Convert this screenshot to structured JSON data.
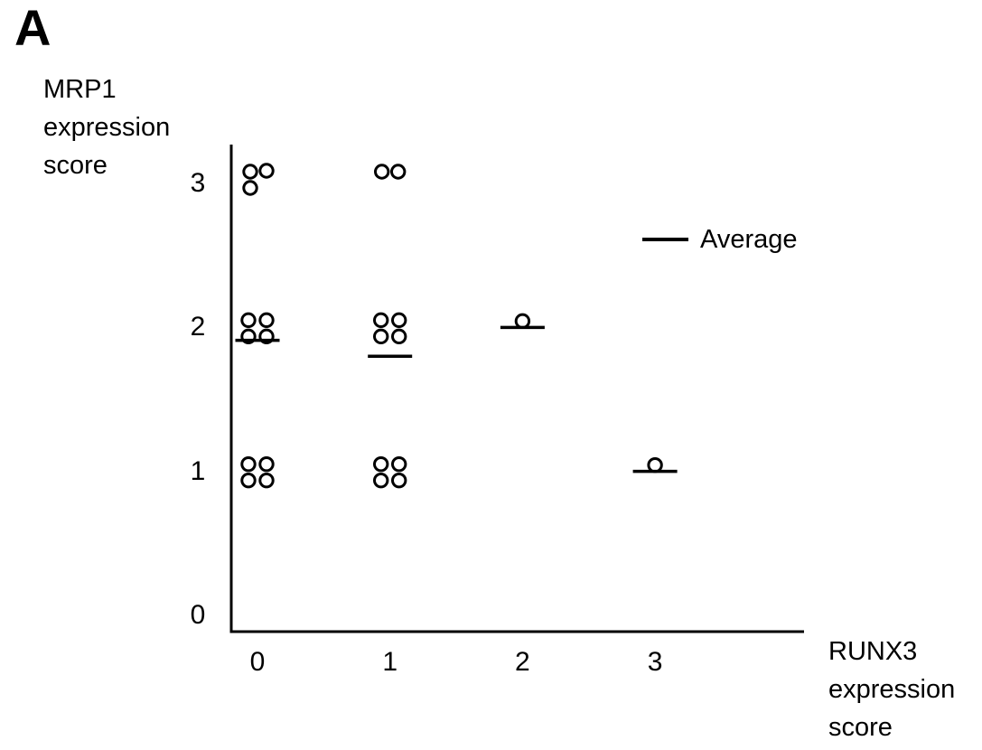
{
  "panel_label": "A",
  "chart_data": {
    "type": "scatter",
    "title": "",
    "xlabel": "RUNX3\nexpression\nscore",
    "ylabel": "MRP1\nexpression\nscore",
    "x_tick_labels": [
      "0",
      "1",
      "2",
      "3"
    ],
    "y_tick_labels": [
      "0",
      "1",
      "2",
      "3"
    ],
    "xlim": [
      0,
      4.1
    ],
    "ylim": [
      0,
      3.4
    ],
    "grid": false,
    "legend": {
      "label": "Average",
      "symbol": "line",
      "position": "upper-right"
    },
    "marker": "open-circle",
    "groups": [
      {
        "x": 0,
        "y": 3,
        "count": 3
      },
      {
        "x": 1,
        "y": 3,
        "count": 2
      },
      {
        "x": 0,
        "y": 2,
        "count": 4
      },
      {
        "x": 1,
        "y": 2,
        "count": 4
      },
      {
        "x": 2,
        "y": 2,
        "count": 1
      },
      {
        "x": 0,
        "y": 1,
        "count": 4
      },
      {
        "x": 1,
        "y": 1,
        "count": 4
      },
      {
        "x": 3,
        "y": 1,
        "count": 1
      }
    ],
    "averages": [
      {
        "x": 0,
        "value": 1.91
      },
      {
        "x": 1,
        "value": 1.8
      },
      {
        "x": 2,
        "value": 2.0
      },
      {
        "x": 3,
        "value": 1.0
      }
    ],
    "colors": {
      "marker_stroke": "#000000",
      "marker_fill": "#ffffff",
      "axis": "#000000",
      "average_line": "#000000",
      "background": "#ffffff"
    }
  }
}
